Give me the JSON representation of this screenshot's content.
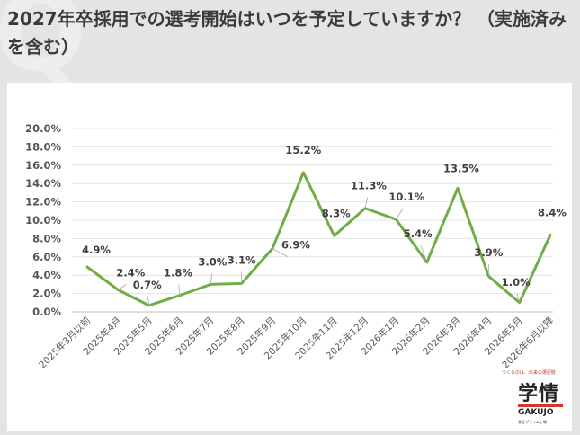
{
  "title": "2027年卒採用での選考開始はいつを予定していますか？ （実施済みを含む）",
  "logo": {
    "tagline": "つくるのは、未来の選択肢",
    "mark": "学情",
    "name_en": "GAKUJO",
    "sub": "東証プライム上場"
  },
  "chart_data": {
    "type": "line",
    "categories": [
      "2025年3月以前",
      "2025年4月",
      "2025年5月",
      "2025年6月",
      "2025年7月",
      "2025年8月",
      "2025年9月",
      "2025年10月",
      "2025年11月",
      "2025年12月",
      "2026年1月",
      "2026年2月",
      "2026年3月",
      "2026年4月",
      "2026年5月",
      "2026年6月以降"
    ],
    "values": [
      4.9,
      2.4,
      0.7,
      1.8,
      3.0,
      3.1,
      6.9,
      15.2,
      8.3,
      11.3,
      10.1,
      5.4,
      13.5,
      3.9,
      1.0,
      8.4
    ],
    "data_labels": [
      "4.9%",
      "2.4%",
      "0.7%",
      "1.8%",
      "3.0%",
      "3.1%",
      "6.9%",
      "15.2%",
      "8.3%",
      "11.3%",
      "10.1%",
      "5.4%",
      "13.5%",
      "3.9%",
      "1.0%",
      "8.4%"
    ],
    "y_ticks": [
      "0.0%",
      "2.0%",
      "4.0%",
      "6.0%",
      "8.0%",
      "10.0%",
      "12.0%",
      "14.0%",
      "16.0%",
      "18.0%",
      "20.0%"
    ],
    "ylim": [
      0,
      20
    ],
    "grid": true,
    "line_color": "#70ad47"
  }
}
